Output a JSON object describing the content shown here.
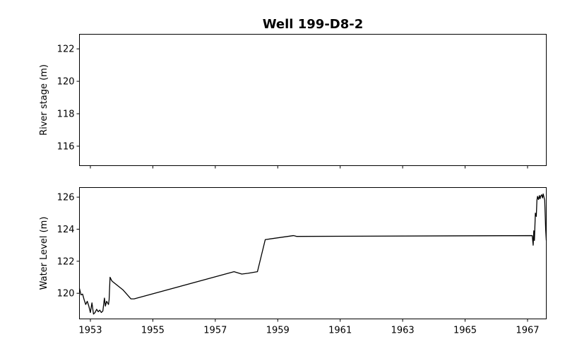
{
  "title": "Well 199-D8-2",
  "chart_data": [
    {
      "type": "line",
      "ylabel": "River stage (m)",
      "xlim": [
        1952.65,
        1967.6
      ],
      "ylim": [
        114.8,
        122.9
      ],
      "yticks": [
        "116",
        "118",
        "120",
        "122"
      ],
      "xticks_shown": false,
      "series": []
    },
    {
      "type": "line",
      "ylabel": "Water Level (m)",
      "xlim": [
        1952.65,
        1967.6
      ],
      "ylim": [
        118.4,
        126.6
      ],
      "yticks": [
        "120",
        "122",
        "124",
        "126"
      ],
      "xtick_labels": [
        "1953",
        "1955",
        "1957",
        "1959",
        "1961",
        "1963",
        "1965",
        "1967"
      ],
      "line_color": "#000000",
      "series": [
        {
          "x": [
            1952.65,
            1952.7,
            1952.75,
            1952.8,
            1952.85,
            1952.9,
            1952.95,
            1953.0,
            1953.05,
            1953.1,
            1953.15,
            1953.2,
            1953.25,
            1953.3,
            1953.35,
            1953.4,
            1953.45,
            1953.48,
            1953.52,
            1953.58,
            1953.6,
            1953.63,
            1953.68,
            1953.7,
            1954.05,
            1954.3,
            1954.4,
            1957.6,
            1957.85,
            1958.05,
            1958.35,
            1958.6,
            1959.5,
            1959.55,
            1959.6,
            1967.15,
            1967.18,
            1967.2,
            1967.22,
            1967.25,
            1967.28,
            1967.3,
            1967.32,
            1967.35,
            1967.38,
            1967.4,
            1967.42,
            1967.45,
            1967.48,
            1967.5,
            1967.52,
            1967.55,
            1967.58,
            1967.6
          ],
          "y": [
            120.3,
            119.9,
            119.95,
            119.6,
            119.3,
            119.5,
            119.2,
            118.8,
            119.4,
            118.7,
            118.8,
            119.0,
            118.85,
            118.95,
            118.8,
            118.9,
            119.7,
            119.2,
            119.5,
            119.3,
            119.6,
            121.0,
            120.8,
            120.75,
            120.2,
            119.65,
            119.65,
            121.35,
            121.2,
            121.25,
            121.35,
            123.35,
            123.6,
            123.58,
            123.55,
            123.6,
            123.0,
            123.9,
            123.3,
            125.0,
            124.8,
            125.8,
            126.05,
            125.85,
            126.1,
            125.9,
            126.05,
            126.15,
            125.95,
            126.2,
            126.05,
            125.8,
            124.0,
            123.3
          ]
        }
      ]
    }
  ]
}
